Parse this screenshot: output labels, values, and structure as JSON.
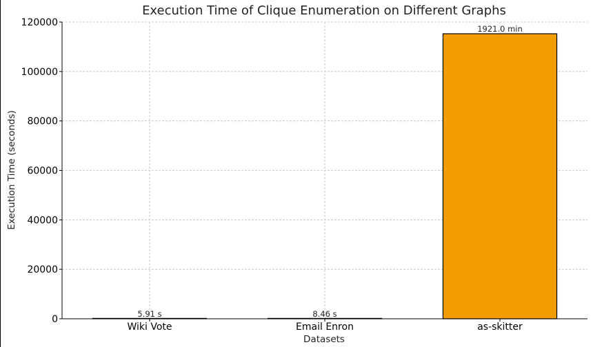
{
  "chart_data": {
    "type": "bar",
    "title": "Execution Time of Clique Enumeration on Different Graphs",
    "xlabel": "Datasets",
    "ylabel": "Execution Time (seconds)",
    "categories": [
      "Wiki Vote",
      "Email Enron",
      "as-skitter"
    ],
    "values": [
      5.91,
      8.46,
      115260
    ],
    "data_labels": [
      "5.91 s",
      "8.46 s",
      "1921.0 min"
    ],
    "ylim": [
      0,
      120000
    ],
    "yticks": [
      0,
      20000,
      40000,
      60000,
      80000,
      100000,
      120000
    ],
    "grid": true,
    "bar_color": "#f39c00",
    "bar_edge_color": "#000000"
  }
}
